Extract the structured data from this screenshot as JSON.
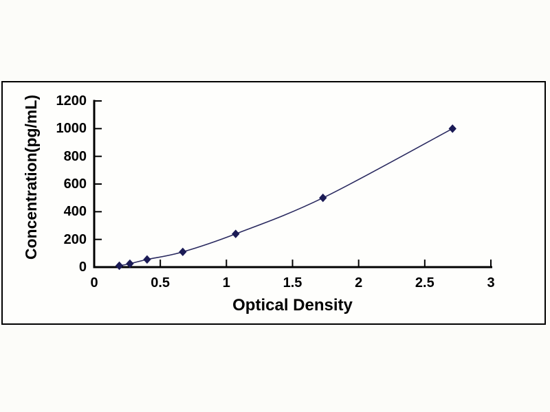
{
  "figure": {
    "background_color": "#fcfcf9",
    "panel_border_color": "#000000",
    "axis_color": "#000000",
    "text_color": "#000000"
  },
  "chart_data": {
    "type": "scatter",
    "subtype": "line-with-diamond-markers",
    "title": "",
    "xlabel": "Optical Density",
    "ylabel": "Concentration(pg/mL)",
    "x": [
      0.19,
      0.27,
      0.4,
      0.67,
      1.07,
      1.73,
      2.71
    ],
    "y": [
      10,
      25,
      55,
      110,
      240,
      500,
      1000
    ],
    "xlim": [
      0,
      3
    ],
    "ylim": [
      0,
      1200
    ],
    "x_ticks": [
      0,
      0.5,
      1,
      1.5,
      2,
      2.5,
      3
    ],
    "x_tick_labels": [
      "0",
      "0.5",
      "1",
      "1.5",
      "2",
      "2.5",
      "3"
    ],
    "y_ticks": [
      0,
      200,
      400,
      600,
      800,
      1000,
      1200
    ],
    "y_tick_labels": [
      "0",
      "200",
      "400",
      "600",
      "800",
      "1000",
      "1200"
    ],
    "grid": false,
    "legend": null,
    "line_color": "#29295f",
    "marker_color": "#1b1b56",
    "marker": "diamond"
  }
}
